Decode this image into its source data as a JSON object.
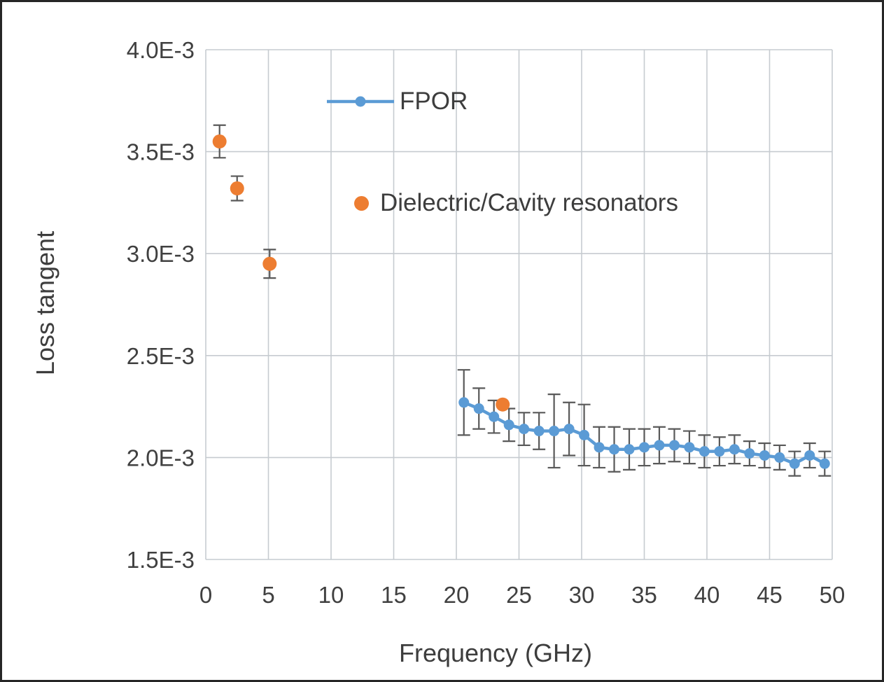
{
  "figure": {
    "background": "#ffffff",
    "border_color": "#262626"
  },
  "chart_data": {
    "type": "scatter",
    "title": "",
    "xlabel": "Frequency (GHz)",
    "ylabel": "Loss tangent",
    "y_value_scale": "1e-3",
    "xlim": [
      0,
      50
    ],
    "ylim": [
      1.5,
      4.0
    ],
    "x_ticks": [
      0,
      5,
      10,
      15,
      20,
      25,
      30,
      35,
      40,
      45,
      50
    ],
    "x_tick_labels": [
      "0",
      "5",
      "10",
      "15",
      "20",
      "25",
      "30",
      "35",
      "40",
      "45",
      "50"
    ],
    "y_ticks": [
      1.5,
      2.0,
      2.5,
      3.0,
      3.5,
      4.0
    ],
    "y_tick_labels": [
      "1.5E-3",
      "2.0E-3",
      "2.5E-3",
      "3.0E-3",
      "3.5E-3",
      "4.0E-3"
    ],
    "grid": true,
    "error_bar_color": "#595959",
    "legend": [
      {
        "label": "FPOR",
        "color": "#5B9BD5",
        "marker": "line-dot"
      },
      {
        "label": "Dielectric/Cavity resonators",
        "color": "#ED7D31",
        "marker": "dot"
      }
    ],
    "series": [
      {
        "name": "FPOR",
        "type": "line-scatter",
        "color": "#5B9BD5",
        "x": [
          20.6,
          21.8,
          23.0,
          24.2,
          25.4,
          26.6,
          27.8,
          29.0,
          30.2,
          31.4,
          32.6,
          33.8,
          35.0,
          36.2,
          37.4,
          38.6,
          39.8,
          41.0,
          42.2,
          43.4,
          44.6,
          45.8,
          47.0,
          48.2,
          49.4
        ],
        "y": [
          2.27,
          2.24,
          2.2,
          2.16,
          2.14,
          2.13,
          2.13,
          2.14,
          2.11,
          2.05,
          2.04,
          2.04,
          2.05,
          2.06,
          2.06,
          2.05,
          2.03,
          2.03,
          2.04,
          2.02,
          2.01,
          2.0,
          1.97,
          2.01,
          1.97
        ],
        "yerr": [
          0.16,
          0.1,
          0.08,
          0.08,
          0.08,
          0.09,
          0.18,
          0.13,
          0.15,
          0.1,
          0.11,
          0.1,
          0.09,
          0.09,
          0.08,
          0.08,
          0.08,
          0.07,
          0.07,
          0.06,
          0.06,
          0.06,
          0.06,
          0.06,
          0.06
        ]
      },
      {
        "name": "Dielectric/Cavity resonators",
        "type": "scatter",
        "color": "#ED7D31",
        "x": [
          1.1,
          2.5,
          5.1,
          23.7
        ],
        "y": [
          3.55,
          3.32,
          2.95,
          2.26
        ],
        "yerr": [
          0.08,
          0.06,
          0.07,
          0
        ]
      }
    ]
  }
}
